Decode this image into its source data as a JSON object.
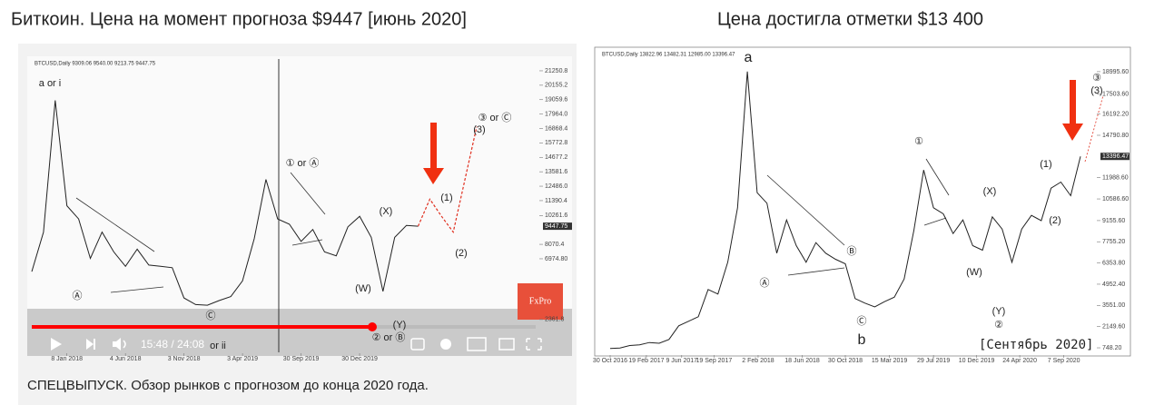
{
  "header": {
    "left_title": "Биткоин. Цена на момент прогноза $9447 [июнь 2020]",
    "right_title": "Цена достигла отметки $13 400",
    "right_caption": "[Сентябрь 2020]"
  },
  "video": {
    "time": "15:48 / 24:08",
    "caption": "СПЕЦВЫПУСК. Обзор рынков с прогнозом до конца 2020 года.",
    "logo": "FxPro"
  },
  "chart_data": [
    {
      "type": "line",
      "title": "BTCUSD,Daily  9309.06 9540.00 9213.75 9447.75",
      "series": [
        {
          "name": "BTCUSD",
          "color": "#222222",
          "values": [
            6000,
            9000,
            19000,
            11000,
            10000,
            7000,
            9000,
            7500,
            6400,
            7700,
            6500,
            6400,
            6300,
            4000,
            3500,
            3450,
            3800,
            4100,
            5300,
            8500,
            13000,
            10000,
            9600,
            8300,
            9200,
            7500,
            7200,
            9400,
            10200,
            8600,
            4500,
            8600,
            9500,
            9447.75,
            null,
            null,
            null,
            null,
            null
          ]
        },
        {
          "name": "projection",
          "color": "#e03020",
          "values": [
            null,
            null,
            null,
            null,
            null,
            null,
            null,
            null,
            null,
            null,
            null,
            null,
            null,
            null,
            null,
            null,
            null,
            null,
            null,
            null,
            null,
            null,
            null,
            null,
            null,
            null,
            null,
            null,
            null,
            null,
            null,
            null,
            null,
            9447.75,
            11500,
            10200,
            9000,
            13000,
            17000
          ]
        }
      ],
      "last_price": 9447.75,
      "ylim": [
        1800,
        21800
      ],
      "yticks": [
        21250.8,
        20155.2,
        19059.6,
        {
          "value": 17964,
          "label": "17964.0"
        },
        16868.4,
        15772.8,
        14677.2,
        13581.6,
        {
          "value": 12486,
          "label": "12486.0"
        },
        11390.4,
        10261.6,
        8070.4,
        {
          "value": 6974.8,
          "label": "6974.80"
        },
        2361.8
      ],
      "xticks": [
        {
          "value": 3,
          "label": "8 Jan 2018"
        },
        {
          "value": 8,
          "label": "4 Jun 2018"
        },
        {
          "value": 13,
          "label": "3 Nov 2018"
        },
        {
          "value": 18,
          "label": "3 Apr 2019"
        },
        {
          "value": 23,
          "label": "30 Sep 2019"
        },
        {
          "value": 28,
          "label": "30 Dec 2019"
        }
      ],
      "annotations": [
        "a or i",
        "Ⓐ",
        "Ⓒ",
        "or ii",
        "① or Ⓐ",
        "(X)",
        "(W)",
        "(Y)",
        "② or Ⓑ",
        "(1)",
        "(2)",
        "③ or Ⓒ",
        "(3)"
      ]
    },
    {
      "type": "line",
      "title": "BTCUSD,Daily  13822.96 13482.31 12985.00 13396.47",
      "series": [
        {
          "name": "BTCUSD",
          "color": "#222222",
          "values": [
            700,
            740,
            900,
            950,
            1100,
            1050,
            1300,
            2200,
            2500,
            2800,
            4600,
            4300,
            6400,
            10000,
            19000,
            11000,
            10300,
            7000,
            9200,
            7500,
            6400,
            7700,
            7000,
            6600,
            6300,
            4000,
            3700,
            3450,
            3800,
            4100,
            5300,
            8500,
            12500,
            10000,
            9600,
            8300,
            9200,
            7500,
            7200,
            9400,
            8600,
            6400,
            8600,
            9500,
            9150,
            11300,
            11700,
            10800,
            13396.47
          ]
        }
      ],
      "last_price": 13396.47,
      "ylim": [
        330,
        20010
      ],
      "yticks": [
        {
          "value": 18995.6,
          "label": "18995.60"
        },
        {
          "value": 17503.6,
          "label": "17503.60"
        },
        {
          "value": 16192.2,
          "label": "16192.20"
        },
        {
          "value": 14790.8,
          "label": "14790.80"
        },
        {
          "value": 11988.6,
          "label": "11988.60"
        },
        {
          "value": 10586.6,
          "label": "10586.60"
        },
        {
          "value": 9155.6,
          "label": "9155.60"
        },
        {
          "value": 7755.2,
          "label": "7755.20"
        },
        {
          "value": 6353.8,
          "label": "6353.80"
        },
        {
          "value": 4952.4,
          "label": "4952.40"
        },
        {
          "value": 3551,
          "label": "3551.00"
        },
        {
          "value": 2149.6,
          "label": "2149.60"
        },
        {
          "value": 748.2,
          "label": "748.20"
        }
      ],
      "xticks": [
        {
          "value": 0,
          "label": "30 Oct 2016"
        },
        {
          "value": 3.7,
          "label": "19 Feb 2017"
        },
        {
          "value": 7.3,
          "label": "9 Jun 2017"
        },
        {
          "value": 10.6,
          "label": "19 Sep 2017"
        },
        {
          "value": 15.1,
          "label": "2 Feb 2018"
        },
        {
          "value": 19.6,
          "label": "18 Jun 2018"
        },
        {
          "value": 24,
          "label": "30 Oct 2018"
        },
        {
          "value": 28.5,
          "label": "15 Mar 2019"
        },
        {
          "value": 33,
          "label": "29 Jul 2019"
        },
        {
          "value": 37.4,
          "label": "10 Dec 2019"
        },
        {
          "value": 41.8,
          "label": "24 Apr 2020"
        },
        {
          "value": 46.3,
          "label": "7 Sep 2020"
        }
      ],
      "annotations": [
        "a",
        "Ⓐ",
        "Ⓑ",
        "Ⓒ",
        "b",
        "①",
        "(X)",
        "(W)",
        "(Y)",
        "②",
        "(1)",
        "(2)",
        "③",
        "(3)"
      ]
    }
  ]
}
